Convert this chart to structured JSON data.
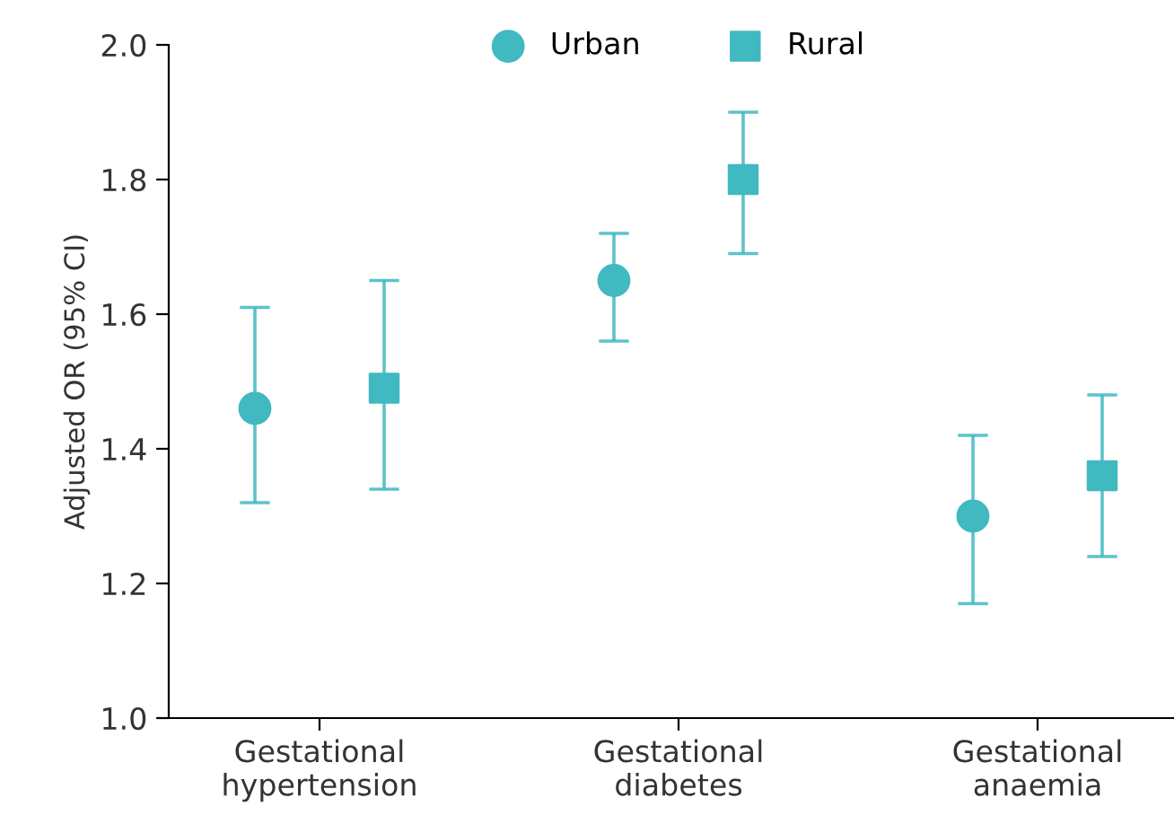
{
  "chart_data": {
    "type": "scatter",
    "ylabel": "Adjusted OR (95% CI)",
    "categories": [
      "Gestational\nhypertension",
      "Gestational\ndiabetes",
      "Gestational\nanaemia"
    ],
    "series": [
      {
        "name": "Urban",
        "color": "#40b9c1",
        "marker": "circle",
        "values": [
          1.46,
          1.65,
          1.3
        ],
        "errors": [
          [
            1.32,
            1.61
          ],
          [
            1.56,
            1.72
          ],
          [
            1.17,
            1.42
          ]
        ]
      },
      {
        "name": "Rural",
        "color": "#40b9c1",
        "marker": "square",
        "values": [
          1.49,
          1.8,
          1.36
        ],
        "errors": [
          [
            1.34,
            1.65
          ],
          [
            1.69,
            1.9
          ],
          [
            1.24,
            1.48
          ]
        ]
      }
    ],
    "ylim": [
      1.0,
      2.0
    ],
    "yticks": [
      {
        "value": 1,
        "label": "1.0"
      },
      1.2,
      1.4,
      1.6,
      1.8,
      {
        "value": 2,
        "label": "2.0"
      }
    ],
    "legend": "top",
    "grid": false
  }
}
